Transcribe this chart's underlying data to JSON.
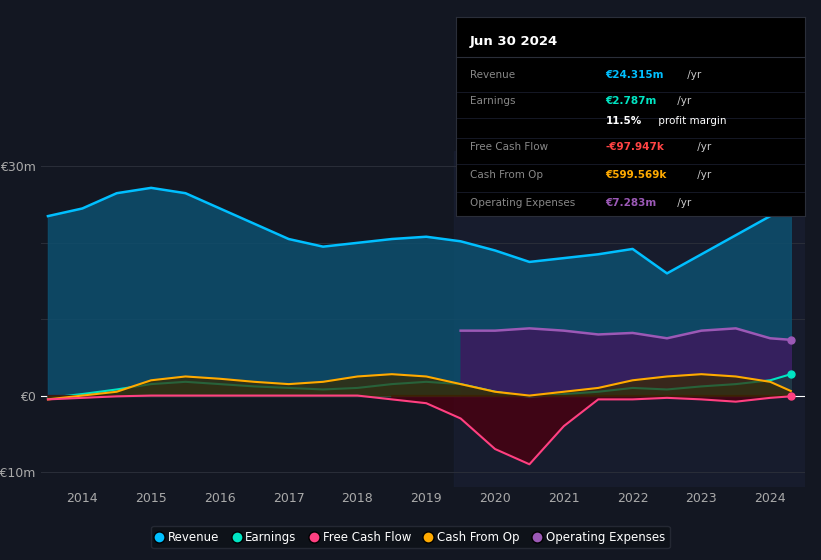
{
  "bg_color": "#131722",
  "plot_bg_color": "#131722",
  "grid_color": "#2a2e39",
  "zero_line_color": "#ffffff",
  "years": [
    2013.5,
    2014,
    2014.5,
    2015,
    2015.5,
    2016,
    2016.5,
    2017,
    2017.5,
    2018,
    2018.5,
    2019,
    2019.5,
    2020,
    2020.5,
    2021,
    2021.5,
    2022,
    2022.5,
    2023,
    2023.5,
    2024,
    2024.3
  ],
  "revenue": [
    23.5,
    24.5,
    26.5,
    27.2,
    26.5,
    24.5,
    22.5,
    20.5,
    19.5,
    20.0,
    20.5,
    20.8,
    20.2,
    19.0,
    17.5,
    18.0,
    18.5,
    19.2,
    16.0,
    18.5,
    21.0,
    23.5,
    24.3
  ],
  "earnings": [
    -0.3,
    0.2,
    0.8,
    1.5,
    1.8,
    1.5,
    1.2,
    1.0,
    0.8,
    1.0,
    1.5,
    1.8,
    1.5,
    0.5,
    -0.2,
    0.2,
    0.5,
    1.0,
    0.8,
    1.2,
    1.5,
    2.0,
    2.8
  ],
  "free_cash_flow": [
    -0.5,
    -0.3,
    -0.1,
    0.0,
    0.0,
    0.0,
    0.0,
    0.0,
    0.0,
    0.0,
    -0.5,
    -1.0,
    -3.0,
    -7.0,
    -9.0,
    -4.0,
    -0.5,
    -0.5,
    -0.3,
    -0.5,
    -0.8,
    -0.3,
    -0.1
  ],
  "cash_from_op": [
    -0.5,
    0.0,
    0.5,
    2.0,
    2.5,
    2.2,
    1.8,
    1.5,
    1.8,
    2.5,
    2.8,
    2.5,
    1.5,
    0.5,
    0.0,
    0.5,
    1.0,
    2.0,
    2.5,
    2.8,
    2.5,
    1.8,
    0.6
  ],
  "op_expenses_x": [
    2019.5,
    2020,
    2020.5,
    2021,
    2021.5,
    2022,
    2022.5,
    2023,
    2023.5,
    2024,
    2024.3
  ],
  "op_expenses": [
    8.5,
    8.5,
    8.8,
    8.5,
    8.0,
    8.2,
    7.5,
    8.5,
    8.8,
    7.5,
    7.3
  ],
  "revenue_color": "#00bfff",
  "revenue_fill": "#0d4f6e",
  "earnings_color": "#00e5c3",
  "earnings_fill": "#1a4040",
  "fcf_color": "#ff4081",
  "fcf_fill_neg": "#4a0010",
  "cash_op_color": "#ffaa00",
  "cash_op_fill": "#3a2a00",
  "op_exp_color": "#9b59b6",
  "op_exp_fill": "#3d1a5e",
  "forecast_bg": "#1a2035",
  "ylim_min": -12,
  "ylim_max": 32,
  "xticks": [
    2014,
    2015,
    2016,
    2017,
    2018,
    2019,
    2020,
    2021,
    2022,
    2023,
    2024
  ],
  "forecast_start": 2019.4,
  "legend_labels": [
    "Revenue",
    "Earnings",
    "Free Cash Flow",
    "Cash From Op",
    "Operating Expenses"
  ],
  "legend_colors": [
    "#00bfff",
    "#00e5c3",
    "#ff4081",
    "#ffaa00",
    "#9b59b6"
  ],
  "info_box": {
    "date": "Jun 30 2024",
    "rows": [
      {
        "label": "Revenue",
        "value": "€24.315m",
        "unit": " /yr",
        "value_color": "#00bfff"
      },
      {
        "label": "Earnings",
        "value": "€2.787m",
        "unit": " /yr",
        "value_color": "#00e5c3"
      },
      {
        "label": "",
        "value": "11.5%",
        "unit": " profit margin",
        "value_color": "#ffffff"
      },
      {
        "label": "Free Cash Flow",
        "value": "-€97.947k",
        "unit": " /yr",
        "value_color": "#ff4444"
      },
      {
        "label": "Cash From Op",
        "value": "€599.569k",
        "unit": " /yr",
        "value_color": "#ffaa00"
      },
      {
        "label": "Operating Expenses",
        "value": "€7.283m",
        "unit": " /yr",
        "value_color": "#9b59b6"
      }
    ]
  }
}
